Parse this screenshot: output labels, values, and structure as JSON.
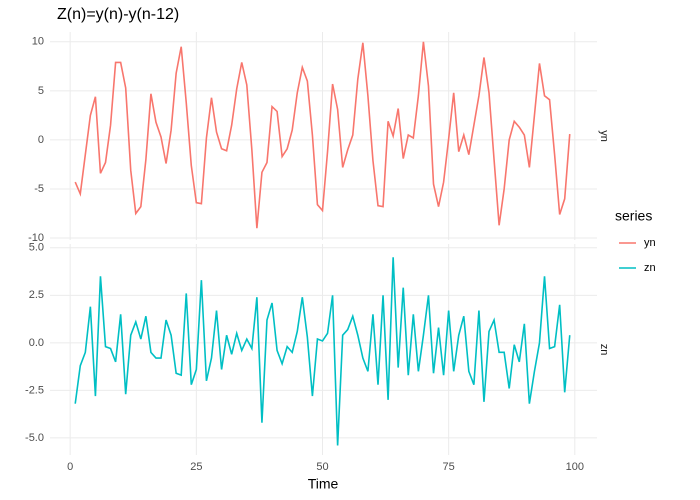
{
  "chart_data": {
    "type": "line",
    "title": "Z(n)=y(n)-y(n-12)",
    "xlabel": "Time",
    "legend_title": "series",
    "xlim": [
      -4,
      104.4
    ],
    "xticks": [
      0,
      25,
      50,
      75,
      100
    ],
    "grid": true,
    "x": [
      1,
      2,
      3,
      4,
      5,
      6,
      7,
      8,
      9,
      10,
      11,
      12,
      13,
      14,
      15,
      16,
      17,
      18,
      19,
      20,
      21,
      22,
      23,
      24,
      25,
      26,
      27,
      28,
      29,
      30,
      31,
      32,
      33,
      34,
      35,
      36,
      37,
      38,
      39,
      40,
      41,
      42,
      43,
      44,
      45,
      46,
      47,
      48,
      49,
      50,
      51,
      52,
      53,
      54,
      55,
      56,
      57,
      58,
      59,
      60,
      61,
      62,
      63,
      64,
      65,
      66,
      67,
      68,
      69,
      70,
      71,
      72,
      73,
      74,
      75,
      76,
      77,
      78,
      79,
      80,
      81,
      82,
      83,
      84,
      85,
      86,
      87,
      88,
      89,
      90,
      91,
      92,
      93,
      94,
      95,
      96,
      97,
      98,
      99
    ],
    "series": [
      {
        "name": "yn",
        "color": "#f8766d",
        "ylim": [
          -10.2,
          11
        ],
        "yticks": [
          -10,
          -5,
          0,
          5,
          10
        ],
        "values": [
          -4.3,
          -5.5,
          -1.5,
          2.5,
          4.4,
          -3.4,
          -2.3,
          1.5,
          7.9,
          7.9,
          5.3,
          -3.1,
          -7.5,
          -6.8,
          -2,
          4.7,
          1.8,
          0.3,
          -2.4,
          1,
          6.8,
          9.5,
          3.8,
          -2.6,
          -6.4,
          -6.5,
          0.2,
          4.3,
          0.8,
          -0.9,
          -1.1,
          1.5,
          5.2,
          7.9,
          5.6,
          -1,
          -9,
          -3.3,
          -2.3,
          3.4,
          2.9,
          -1.7,
          -0.9,
          1,
          4.8,
          7.4,
          6,
          0.5,
          -6.6,
          -7.2,
          -1.2,
          5.7,
          3.1,
          -2.8,
          -1,
          0.5,
          6.2,
          9.9,
          4.5,
          -2.1,
          -6.7,
          -6.8,
          1.9,
          0.4,
          3.2,
          -1.9,
          0.5,
          0.2,
          4.5,
          10,
          5.5,
          -4.5,
          -6.8,
          -4.3,
          0.1,
          4.8,
          -1.2,
          0.5,
          -1.5,
          1.5,
          4.5,
          8.4,
          4.8,
          -2,
          -8.7,
          -5,
          0,
          1.9,
          1.3,
          0.5,
          -2.8,
          2.5,
          7.8,
          4.5,
          4.1,
          -1.5,
          -7.6,
          -6,
          0.6
        ]
      },
      {
        "name": "zn",
        "color": "#00bfc4",
        "ylim": [
          -5.9,
          5.2
        ],
        "yticks": [
          {
            "value": -5,
            "label": "-5.0"
          },
          {
            "value": -2.5,
            "label": "-2.5"
          },
          {
            "value": 0,
            "label": "0.0"
          },
          {
            "value": 2.5,
            "label": "2.5"
          },
          {
            "value": 5,
            "label": "5.0"
          }
        ],
        "values": [
          -3.2,
          -1.2,
          -0.5,
          1.9,
          -2.8,
          3.5,
          -0.2,
          -0.3,
          -1,
          1.5,
          -2.7,
          0.4,
          1.1,
          0.2,
          1.4,
          -0.5,
          -0.8,
          -0.8,
          1.2,
          0.4,
          -1.6,
          -1.7,
          2.6,
          -2.2,
          -1.4,
          3.3,
          -2,
          -0.8,
          1.7,
          -1.4,
          0.4,
          -0.6,
          0.5,
          -0.4,
          0.2,
          -0.3,
          2.4,
          -4.2,
          1.2,
          2.1,
          -0.4,
          -1.1,
          -0.2,
          -0.5,
          0.6,
          2.4,
          0.3,
          -2.8,
          0.2,
          0.1,
          0.5,
          2.5,
          -5.4,
          0.4,
          0.7,
          1.4,
          0.4,
          -0.8,
          -1.5,
          1.5,
          -2.2,
          2.5,
          -3,
          4.5,
          -1.3,
          2.9,
          -1.7,
          1.5,
          -1.5,
          0.4,
          2.5,
          -1.6,
          0.8,
          -1.7,
          1.7,
          -1.5,
          0.4,
          1.4,
          -1.5,
          -2.2,
          1.7,
          -3.1,
          0.6,
          1.2,
          -0.5,
          -0.5,
          -2.4,
          -0.1,
          -1,
          1,
          -3.2,
          -1.5,
          0,
          3.5,
          -0.3,
          -0.2,
          2,
          -2.6,
          0.4
        ]
      }
    ]
  }
}
